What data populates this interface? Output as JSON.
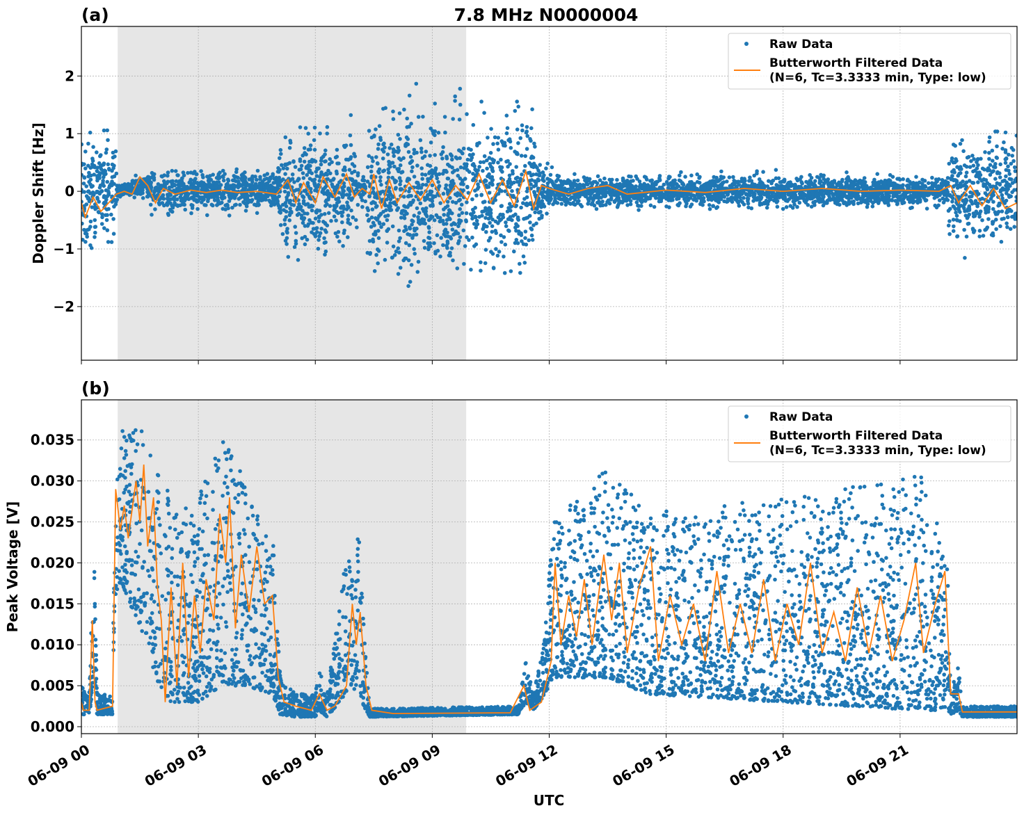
{
  "title": "7.8 MHz N0000004",
  "xlabel": "UTC",
  "colors": {
    "raw": "#1f77b4",
    "filtered": "#ff7f0e",
    "shade": "#e6e6e6",
    "grid": "#b0b0b0"
  },
  "legend": {
    "raw": "Raw Data",
    "filtered_line1": "Butterworth Filtered Data",
    "filtered_line2": "(N=6, Tc=3.3333 min, Type: low)",
    "placement": "top-right"
  },
  "chart_data": [
    {
      "type": "scatter+line",
      "panel": "(a)",
      "ylabel": "Doppler Shift [Hz]",
      "xlim_hours": [
        0,
        24
      ],
      "xticks": [
        "06-09 00",
        "06-09 03",
        "06-09 06",
        "06-09 09",
        "06-09 12",
        "06-09 15",
        "06-09 18",
        "06-09 21"
      ],
      "ylim": [
        -2.93,
        2.86
      ],
      "yticks": [
        2,
        1,
        0,
        -1,
        -2
      ],
      "ytick_labels": [
        "2",
        "1",
        "0",
        "−1",
        "−2"
      ],
      "grid": true,
      "shaded_interval_hours": [
        0.93,
        9.87
      ],
      "raw_envelope": [
        [
          0,
          -1.2,
          1.3
        ],
        [
          0.9,
          -1.2,
          1.2
        ],
        [
          0.93,
          -0.15,
          0.15
        ],
        [
          1.7,
          -0.15,
          0.35
        ],
        [
          1.8,
          -0.5,
          0.5
        ],
        [
          5.0,
          -0.4,
          0.4
        ],
        [
          5.1,
          -1.3,
          1.3
        ],
        [
          7.0,
          -1.3,
          1.3
        ],
        [
          7.1,
          -0.4,
          0.4
        ],
        [
          7.3,
          -0.4,
          0.4
        ],
        [
          7.35,
          -1.8,
          1.8
        ],
        [
          11.6,
          -1.8,
          1.8
        ],
        [
          11.7,
          -0.6,
          0.6
        ],
        [
          12.3,
          -0.35,
          0.35
        ],
        [
          22.2,
          -0.35,
          0.35
        ],
        [
          22.3,
          -1.3,
          1.3
        ],
        [
          24,
          -1.3,
          1.3
        ]
      ],
      "filtered": [
        [
          0,
          -0.2
        ],
        [
          0.1,
          -0.45
        ],
        [
          0.3,
          -0.1
        ],
        [
          0.5,
          -0.35
        ],
        [
          0.7,
          -0.2
        ],
        [
          0.9,
          -0.05
        ],
        [
          1.1,
          0
        ],
        [
          1.3,
          -0.05
        ],
        [
          1.5,
          0.25
        ],
        [
          1.7,
          0.1
        ],
        [
          1.9,
          -0.2
        ],
        [
          2.1,
          0.05
        ],
        [
          2.4,
          -0.05
        ],
        [
          2.8,
          0.02
        ],
        [
          3.2,
          -0.02
        ],
        [
          3.6,
          0.02
        ],
        [
          4.0,
          -0.02
        ],
        [
          4.5,
          0.0
        ],
        [
          5.0,
          -0.05
        ],
        [
          5.3,
          0.2
        ],
        [
          5.5,
          -0.2
        ],
        [
          5.7,
          0.15
        ],
        [
          6.0,
          -0.2
        ],
        [
          6.2,
          0.25
        ],
        [
          6.5,
          -0.1
        ],
        [
          6.8,
          0.3
        ],
        [
          7.0,
          -0.1
        ],
        [
          7.2,
          0.05
        ],
        [
          7.4,
          -0.05
        ],
        [
          7.5,
          0.3
        ],
        [
          7.7,
          -0.3
        ],
        [
          7.9,
          0.2
        ],
        [
          8.1,
          -0.2
        ],
        [
          8.4,
          0.15
        ],
        [
          8.7,
          -0.15
        ],
        [
          9.0,
          0.2
        ],
        [
          9.3,
          -0.2
        ],
        [
          9.6,
          0.1
        ],
        [
          9.9,
          -0.15
        ],
        [
          10.2,
          0.3
        ],
        [
          10.5,
          -0.2
        ],
        [
          10.8,
          0.2
        ],
        [
          11.1,
          -0.25
        ],
        [
          11.4,
          0.35
        ],
        [
          11.6,
          -0.3
        ],
        [
          11.8,
          0.1
        ],
        [
          12.0,
          0.05
        ],
        [
          12.5,
          -0.05
        ],
        [
          13.0,
          0.05
        ],
        [
          13.5,
          0.1
        ],
        [
          14,
          -0.05
        ],
        [
          15,
          0.02
        ],
        [
          16,
          -0.02
        ],
        [
          17,
          0.05
        ],
        [
          18,
          0.0
        ],
        [
          19,
          0.05
        ],
        [
          20,
          0.0
        ],
        [
          21,
          0.02
        ],
        [
          22,
          0.0
        ],
        [
          22.3,
          0.1
        ],
        [
          22.5,
          -0.2
        ],
        [
          22.8,
          0.1
        ],
        [
          23.1,
          -0.25
        ],
        [
          23.4,
          0.05
        ],
        [
          23.7,
          -0.3
        ],
        [
          24,
          -0.2
        ]
      ]
    },
    {
      "type": "scatter+line",
      "panel": "(b)",
      "ylabel": "Peak Voltage [V]",
      "xlim_hours": [
        0,
        24
      ],
      "xticks": [
        "06-09 00",
        "06-09 03",
        "06-09 06",
        "06-09 09",
        "06-09 12",
        "06-09 15",
        "06-09 18",
        "06-09 21"
      ],
      "ylim": [
        -0.00085,
        0.0399
      ],
      "yticks": [
        0,
        0.005,
        0.01,
        0.015,
        0.02,
        0.025,
        0.03,
        0.035
      ],
      "ytick_labels": [
        "0.000",
        "0.005",
        "0.010",
        "0.015",
        "0.020",
        "0.025",
        "0.030",
        "0.035"
      ],
      "grid": true,
      "shaded_interval_hours": [
        0.93,
        9.87
      ],
      "raw_envelope": [
        [
          0,
          0.0015,
          0.005
        ],
        [
          0.2,
          0.0015,
          0.004
        ],
        [
          0.25,
          0.003,
          0.012
        ],
        [
          0.33,
          0.008,
          0.02
        ],
        [
          0.4,
          0.0015,
          0.004
        ],
        [
          0.8,
          0.0015,
          0.004
        ],
        [
          0.85,
          0.015,
          0.032
        ],
        [
          1.0,
          0.018,
          0.036
        ],
        [
          1.5,
          0.012,
          0.037
        ],
        [
          2.0,
          0.005,
          0.033
        ],
        [
          2.3,
          0.003,
          0.028
        ],
        [
          3.0,
          0.003,
          0.028
        ],
        [
          3.6,
          0.005,
          0.036
        ],
        [
          4.2,
          0.005,
          0.03
        ],
        [
          4.9,
          0.004,
          0.024
        ],
        [
          5.1,
          0.0015,
          0.006
        ],
        [
          5.5,
          0.0012,
          0.004
        ],
        [
          6.0,
          0.0012,
          0.004
        ],
        [
          6.1,
          0.002,
          0.007
        ],
        [
          6.3,
          0.0012,
          0.004
        ],
        [
          6.8,
          0.004,
          0.021
        ],
        [
          7.1,
          0.004,
          0.025
        ],
        [
          7.3,
          0.002,
          0.008
        ],
        [
          7.4,
          0.0012,
          0.0022
        ],
        [
          11.2,
          0.0015,
          0.0025
        ],
        [
          11.4,
          0.003,
          0.008
        ],
        [
          11.6,
          0.002,
          0.004
        ],
        [
          11.9,
          0.004,
          0.012
        ],
        [
          12.1,
          0.006,
          0.025
        ],
        [
          13.5,
          0.006,
          0.032
        ],
        [
          14.5,
          0.004,
          0.026
        ],
        [
          18,
          0.003,
          0.028
        ],
        [
          21.5,
          0.002,
          0.031
        ],
        [
          22.2,
          0.002,
          0.022
        ],
        [
          22.3,
          0.0015,
          0.004
        ],
        [
          22.5,
          0.002,
          0.008
        ],
        [
          22.6,
          0.0012,
          0.0025
        ],
        [
          24,
          0.0012,
          0.0025
        ]
      ],
      "filtered": [
        [
          0,
          0.003
        ],
        [
          0.05,
          0.002
        ],
        [
          0.2,
          0.002
        ],
        [
          0.28,
          0.013
        ],
        [
          0.35,
          0.003
        ],
        [
          0.4,
          0.002
        ],
        [
          0.8,
          0.0025
        ],
        [
          0.88,
          0.029
        ],
        [
          1.0,
          0.024
        ],
        [
          1.1,
          0.027
        ],
        [
          1.2,
          0.023
        ],
        [
          1.4,
          0.03
        ],
        [
          1.5,
          0.025
        ],
        [
          1.6,
          0.032
        ],
        [
          1.7,
          0.022
        ],
        [
          1.85,
          0.028
        ],
        [
          1.95,
          0.017
        ],
        [
          2.05,
          0.013
        ],
        [
          2.15,
          0.003
        ],
        [
          2.3,
          0.017
        ],
        [
          2.45,
          0.005
        ],
        [
          2.6,
          0.02
        ],
        [
          2.75,
          0.006
        ],
        [
          2.9,
          0.016
        ],
        [
          3.05,
          0.009
        ],
        [
          3.2,
          0.018
        ],
        [
          3.4,
          0.013
        ],
        [
          3.55,
          0.026
        ],
        [
          3.7,
          0.02
        ],
        [
          3.8,
          0.028
        ],
        [
          3.95,
          0.012
        ],
        [
          4.1,
          0.021
        ],
        [
          4.3,
          0.014
        ],
        [
          4.5,
          0.022
        ],
        [
          4.7,
          0.015
        ],
        [
          4.9,
          0.016
        ],
        [
          5.05,
          0.006
        ],
        [
          5.2,
          0.003
        ],
        [
          5.5,
          0.0025
        ],
        [
          5.9,
          0.002
        ],
        [
          6.1,
          0.004
        ],
        [
          6.3,
          0.002
        ],
        [
          6.5,
          0.0025
        ],
        [
          6.8,
          0.005
        ],
        [
          6.95,
          0.015
        ],
        [
          7.05,
          0.01
        ],
        [
          7.15,
          0.014
        ],
        [
          7.3,
          0.005
        ],
        [
          7.45,
          0.002
        ],
        [
          8,
          0.0016
        ],
        [
          11.0,
          0.0017
        ],
        [
          11.35,
          0.005
        ],
        [
          11.5,
          0.002
        ],
        [
          11.8,
          0.003
        ],
        [
          12.05,
          0.008
        ],
        [
          12.15,
          0.02
        ],
        [
          12.3,
          0.01
        ],
        [
          12.5,
          0.016
        ],
        [
          12.7,
          0.011
        ],
        [
          12.9,
          0.018
        ],
        [
          13.1,
          0.01
        ],
        [
          13.4,
          0.021
        ],
        [
          13.6,
          0.013
        ],
        [
          13.8,
          0.02
        ],
        [
          14.0,
          0.009
        ],
        [
          14.3,
          0.017
        ],
        [
          14.6,
          0.022
        ],
        [
          14.8,
          0.008
        ],
        [
          15.1,
          0.016
        ],
        [
          15.4,
          0.01
        ],
        [
          15.7,
          0.015
        ],
        [
          16.0,
          0.008
        ],
        [
          16.3,
          0.019
        ],
        [
          16.6,
          0.009
        ],
        [
          16.9,
          0.015
        ],
        [
          17.2,
          0.009
        ],
        [
          17.5,
          0.018
        ],
        [
          17.8,
          0.008
        ],
        [
          18.1,
          0.015
        ],
        [
          18.4,
          0.01
        ],
        [
          18.7,
          0.02
        ],
        [
          19.0,
          0.009
        ],
        [
          19.3,
          0.014
        ],
        [
          19.6,
          0.008
        ],
        [
          19.9,
          0.017
        ],
        [
          20.2,
          0.009
        ],
        [
          20.5,
          0.016
        ],
        [
          20.8,
          0.008
        ],
        [
          21.1,
          0.013
        ],
        [
          21.4,
          0.02
        ],
        [
          21.6,
          0.009
        ],
        [
          21.9,
          0.015
        ],
        [
          22.15,
          0.019
        ],
        [
          22.3,
          0.004
        ],
        [
          22.5,
          0.004
        ],
        [
          22.6,
          0.0018
        ],
        [
          24,
          0.0018
        ]
      ]
    }
  ]
}
